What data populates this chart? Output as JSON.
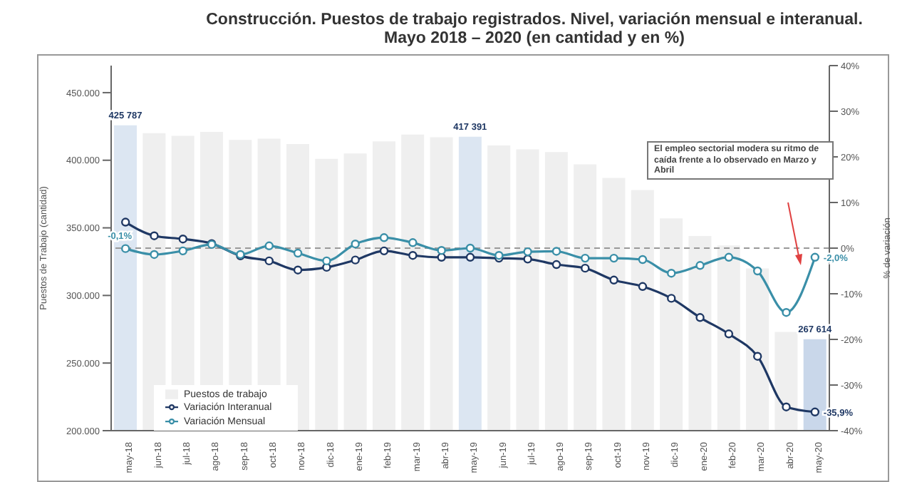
{
  "chart_data": {
    "type": "bar",
    "title": "Construcción. Puestos de trabajo registrados. Nivel, variación mensual e interanual.",
    "subtitle": "Mayo 2018 – 2020 (en cantidad y en %)",
    "ylabel": "Puestos de Trabajo (cantidad)",
    "y2label": "% de variación",
    "categories": [
      "may-18",
      "jun-18",
      "jul-18",
      "ago-18",
      "sep-18",
      "oct-18",
      "nov-18",
      "dic-18",
      "ene-19",
      "feb-19",
      "mar-19",
      "abr-19",
      "may-19",
      "jun-19",
      "jul-19",
      "ago-19",
      "sep-19",
      "oct-19",
      "nov-19",
      "dic-19",
      "ene-20",
      "feb-20",
      "mar-20",
      "abr-20",
      "may-20"
    ],
    "series": [
      {
        "name": "Puestos de trabajo",
        "color": "#efefef",
        "colors": [
          "#dce6f2",
          "#efefef",
          "#efefef",
          "#efefef",
          "#efefef",
          "#efefef",
          "#efefef",
          "#efefef",
          "#efefef",
          "#efefef",
          "#efefef",
          "#efefef",
          "#dce6f2",
          "#efefef",
          "#efefef",
          "#efefef",
          "#efefef",
          "#efefef",
          "#efefef",
          "#efefef",
          "#efefef",
          "#efefef",
          "#efefef",
          "#efefef",
          "#c9d7ea"
        ],
        "values": [
          425787,
          420000,
          418000,
          421000,
          415000,
          416000,
          412000,
          401000,
          405000,
          414000,
          419000,
          417000,
          417391,
          411000,
          408000,
          406000,
          397000,
          387000,
          378000,
          357000,
          344000,
          337000,
          320000,
          273000,
          267614
        ],
        "value_labels": [
          "425 787",
          null,
          null,
          null,
          null,
          null,
          null,
          null,
          null,
          null,
          null,
          null,
          "417 391",
          null,
          null,
          null,
          null,
          null,
          null,
          null,
          null,
          null,
          null,
          null,
          "267 614"
        ]
      },
      {
        "name": "Variación Interanual",
        "type": "line",
        "axis": "y2",
        "color": "#1f3864",
        "values": [
          5.7,
          2.7,
          2.0,
          1.0,
          -1.7,
          -2.8,
          -4.8,
          -4.2,
          -2.6,
          -0.6,
          -1.6,
          -2.0,
          -2.0,
          -2.2,
          -2.4,
          -3.6,
          -4.4,
          -7.0,
          -8.4,
          -11.0,
          -15.2,
          -18.8,
          -23.7,
          -34.8,
          -35.9
        ],
        "value_labels": [
          null,
          null,
          null,
          null,
          null,
          null,
          null,
          null,
          null,
          null,
          null,
          null,
          null,
          null,
          null,
          null,
          null,
          null,
          null,
          null,
          null,
          null,
          null,
          null,
          "-35,9%"
        ]
      },
      {
        "name": "Variación Mensual",
        "type": "line",
        "axis": "y2",
        "color": "#3a8fa8",
        "values": [
          -0.1,
          -1.4,
          -0.6,
          0.8,
          -1.4,
          0.5,
          -1.1,
          -2.8,
          0.9,
          2.3,
          1.2,
          -0.5,
          0.0,
          -1.6,
          -0.8,
          -0.7,
          -2.2,
          -2.2,
          -2.5,
          -5.5,
          -3.8,
          -2.0,
          -5.0,
          -14.1,
          -2.0
        ],
        "value_labels": [
          "-0,1%",
          null,
          null,
          null,
          null,
          null,
          null,
          null,
          null,
          null,
          null,
          null,
          null,
          null,
          null,
          null,
          null,
          null,
          null,
          null,
          null,
          null,
          null,
          null,
          "-2,0%"
        ]
      }
    ],
    "ylim": [
      200000,
      470000
    ],
    "yticks": [
      {
        "value": 200000,
        "label": "200.000"
      },
      {
        "value": 250000,
        "label": "250.000"
      },
      {
        "value": 300000,
        "label": "300.000"
      },
      {
        "value": 350000,
        "label": "350.000"
      },
      {
        "value": 400000,
        "label": "400.000"
      },
      {
        "value": 450000,
        "label": "450.000"
      }
    ],
    "y2lim": [
      -40,
      40
    ],
    "y2ticks": [
      {
        "value": -40,
        "label": "-40%"
      },
      {
        "value": -30,
        "label": "-30%"
      },
      {
        "value": -20,
        "label": "-20%"
      },
      {
        "value": -10,
        "label": "-10%"
      },
      {
        "value": 0,
        "label": "0%"
      },
      {
        "value": 10,
        "label": "10%"
      },
      {
        "value": 20,
        "label": "20%"
      },
      {
        "value": 30,
        "label": "30%"
      },
      {
        "value": 40,
        "label": "40%"
      }
    ],
    "ref_lines": [
      {
        "axis": "y2",
        "value": 0,
        "color": "#999999",
        "line_style": "dashed"
      }
    ],
    "annotations": [
      "El empleo sectorial modera su ritmo de caída frente a lo observado en Marzo y Abril"
    ],
    "legend": "bottom left",
    "marker": "circle",
    "grid": false
  }
}
